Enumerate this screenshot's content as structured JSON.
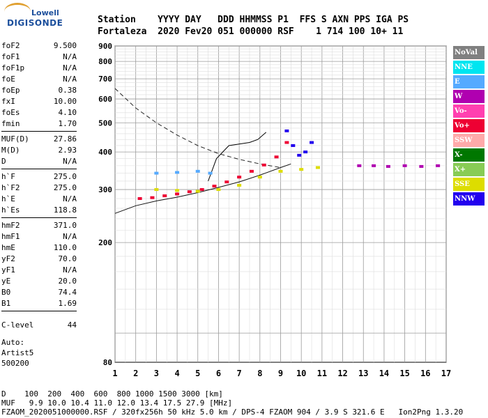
{
  "logo": {
    "line1": "Lowell",
    "line2": "DIGISONDE"
  },
  "header": {
    "row1": "Station    YYYY DAY   DDD HHMMSS P1  FFS S AXN PPS IGA PS",
    "row2": "Fortaleza  2020 Fev20 051 000000 RSF    1 714 100 10+ 11"
  },
  "params": {
    "group1": [
      {
        "label": "foF2",
        "value": "9.500"
      },
      {
        "label": "foF1",
        "value": "N/A"
      },
      {
        "label": "foF1p",
        "value": "N/A"
      },
      {
        "label": "foE",
        "value": "N/A"
      },
      {
        "label": "foEp",
        "value": "0.38"
      },
      {
        "label": "fxI",
        "value": "10.00"
      },
      {
        "label": "foEs",
        "value": "4.10"
      },
      {
        "label": "fmin",
        "value": "1.70"
      }
    ],
    "group2": [
      {
        "label": "MUF(D)",
        "value": "27.86"
      },
      {
        "label": "M(D)",
        "value": "2.93"
      },
      {
        "label": "D",
        "value": "N/A"
      }
    ],
    "group3": [
      {
        "label": "h`F",
        "value": "275.0"
      },
      {
        "label": "h`F2",
        "value": "275.0"
      },
      {
        "label": "h`E",
        "value": "N/A"
      },
      {
        "label": "h`Es",
        "value": "118.8"
      }
    ],
    "group4": [
      {
        "label": "hmF2",
        "value": "371.0"
      },
      {
        "label": "hmF1",
        "value": "N/A"
      },
      {
        "label": "hmE",
        "value": "110.0"
      },
      {
        "label": "yF2",
        "value": "70.0"
      },
      {
        "label": "yF1",
        "value": "N/A"
      },
      {
        "label": "yE",
        "value": "20.0"
      },
      {
        "label": "B0",
        "value": "74.4"
      },
      {
        "label": "B1",
        "value": "1.69"
      }
    ],
    "clevel": {
      "label": "C-level",
      "value": "44"
    },
    "auto": [
      "Auto:",
      "Artist5",
      "500200"
    ]
  },
  "legend": [
    {
      "label": "NoVal",
      "color": "#808080"
    },
    {
      "label": "NNE",
      "color": "#00e5f0"
    },
    {
      "label": "E",
      "color": "#55aaff"
    },
    {
      "label": "W",
      "color": "#b000b0"
    },
    {
      "label": "Vo-",
      "color": "#ff40b0"
    },
    {
      "label": "Vo+",
      "color": "#ee0033"
    },
    {
      "label": "SSW",
      "color": "#ffaaaa"
    },
    {
      "label": "X-",
      "color": "#007700"
    },
    {
      "label": "X+",
      "color": "#88cc55"
    },
    {
      "label": "SSE",
      "color": "#dddd00"
    },
    {
      "label": "NNW",
      "color": "#2200ee"
    }
  ],
  "footer": {
    "row1": "D    100  200  400  600  800 1000 1500 3000 [km]",
    "row2": "MUF   9.9 10.0 10.4 11.0 12.0 13.4 17.5 27.9 [MHz]",
    "row3": "FZAOM_2020051000000.RSF / 320fx256h 50 kHz 5.0 km / DPS-4 FZAOM 904 / 3.9 S 321.6 E   Ion2Png 1.3.20"
  },
  "chart_data": {
    "type": "scatter",
    "title": "",
    "xlabel": "",
    "ylabel": "",
    "xlim": [
      1,
      17
    ],
    "ylim": [
      80,
      900
    ],
    "yscale": "log",
    "xticks": [
      "1",
      "2",
      "3",
      "4",
      "5",
      "6",
      "7",
      "8",
      "9",
      "10",
      "11",
      "12",
      "13",
      "14",
      "15",
      "16",
      "17"
    ],
    "yticks": [
      "80",
      "200",
      "300",
      "400",
      "500",
      "600",
      "700",
      "800",
      "900"
    ],
    "grid": true,
    "legend_position": "right",
    "series": [
      {
        "name": "Vo+",
        "color": "#ee0033",
        "x": [
          2.2,
          2.8,
          3.4,
          4.0,
          4.6,
          5.2,
          5.8,
          6.4,
          7.0,
          7.6,
          8.2,
          8.8,
          9.3
        ],
        "y": [
          280,
          282,
          286,
          290,
          295,
          300,
          308,
          318,
          330,
          345,
          362,
          385,
          430
        ]
      },
      {
        "name": "W",
        "color": "#b000b0",
        "x": [
          12.8,
          13.5,
          14.2,
          15.0,
          15.8,
          16.6
        ],
        "y": [
          360,
          360,
          358,
          360,
          358,
          360
        ]
      },
      {
        "name": "NNW",
        "color": "#2200ee",
        "x": [
          9.3,
          9.6,
          9.9,
          10.2,
          10.5
        ],
        "y": [
          470,
          420,
          390,
          400,
          430
        ]
      },
      {
        "name": "SSE",
        "color": "#dddd00",
        "x": [
          3.0,
          4.0,
          5.0,
          6.0,
          7.0,
          8.0,
          9.0,
          10.0,
          10.8
        ],
        "y": [
          300,
          298,
          296,
          300,
          310,
          330,
          345,
          350,
          355
        ]
      },
      {
        "name": "E",
        "color": "#55aaff",
        "x": [
          3.0,
          4.0,
          5.0,
          5.6
        ],
        "y": [
          340,
          342,
          345,
          340
        ]
      }
    ],
    "profile_curve": {
      "x": [
        5.5,
        5.9,
        6.5,
        7.0,
        7.5,
        7.9,
        8.3
      ],
      "y": [
        320,
        380,
        420,
        425,
        430,
        440,
        465
      ]
    },
    "dashed_curve": {
      "x": [
        1.0,
        2.0,
        3.0,
        4.0,
        5.0,
        6.0,
        7.0,
        8.0,
        9.0
      ],
      "y": [
        650,
        560,
        500,
        455,
        420,
        395,
        378,
        365,
        355
      ]
    },
    "lower_curve": {
      "x": [
        1.0,
        2.0,
        3.0,
        4.0,
        5.0,
        6.0,
        7.0,
        8.0,
        9.0,
        9.5
      ],
      "y": [
        250,
        265,
        275,
        283,
        293,
        305,
        318,
        335,
        355,
        365
      ]
    }
  }
}
